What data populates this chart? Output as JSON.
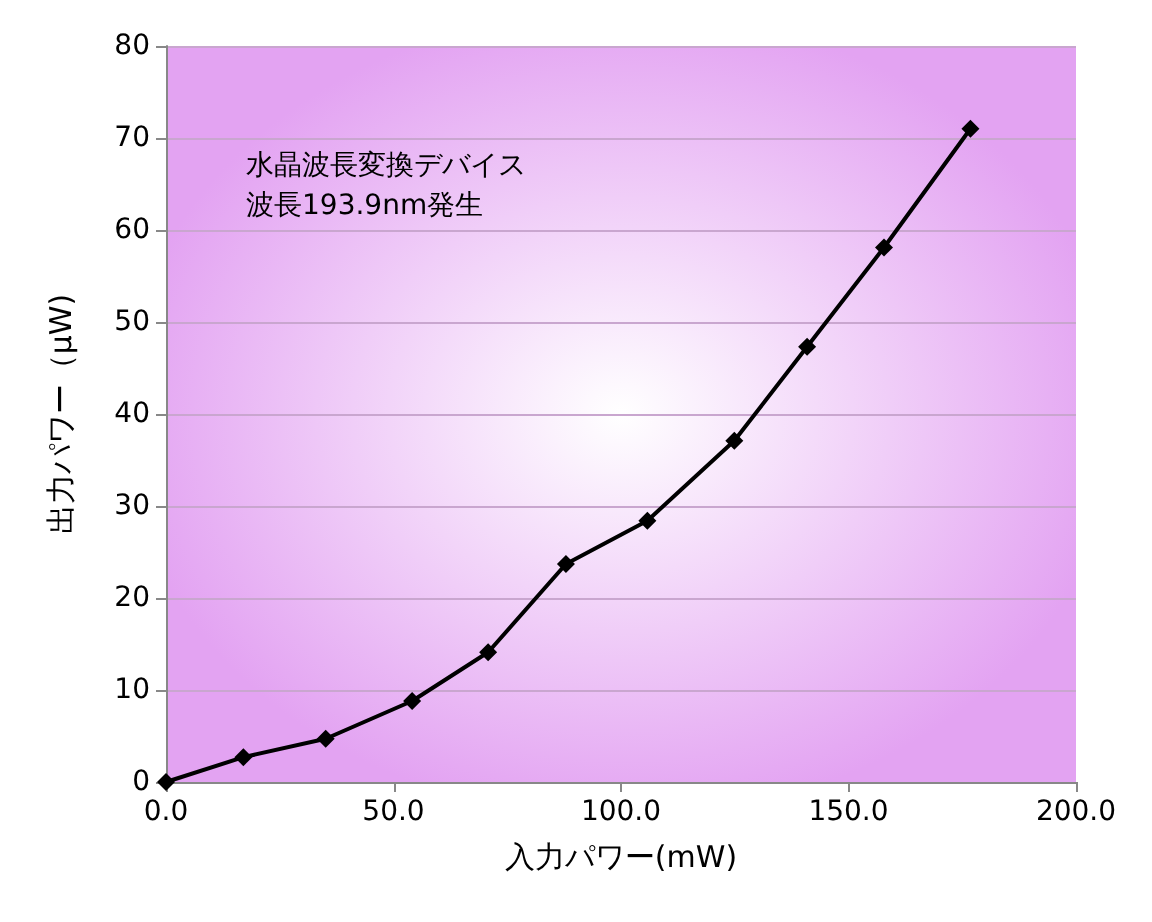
{
  "chart_data": {
    "type": "line",
    "xlabel": "入力パワー(mW)",
    "ylabel": "出力パワー（μW)",
    "annotations": [
      "水晶波長変換デバイス",
      "波長193.9nm発生"
    ],
    "x": [
      0,
      17.0,
      35.1,
      54.1,
      70.8,
      87.9,
      105.8,
      124.9,
      140.9,
      157.8,
      176.8
    ],
    "series": [
      {
        "color": "#000000",
        "values": [
          0,
          2.7,
          4.7,
          8.8,
          14.1,
          23.7,
          28.4,
          37.1,
          47.3,
          58.1,
          71.0
        ]
      }
    ],
    "xlim": [
      0,
      200
    ],
    "xticks": [
      {
        "value": 0,
        "label": "0.0"
      },
      {
        "value": 50,
        "label": "50.0"
      },
      {
        "value": 100,
        "label": "100.0"
      },
      {
        "value": 150,
        "label": "150.0"
      },
      {
        "value": 200,
        "label": "200.0"
      }
    ],
    "ylim": [
      0,
      80
    ],
    "yticks": [
      0,
      10,
      20,
      30,
      40,
      50,
      60,
      70,
      80
    ],
    "grid": "y",
    "marker": "diamond",
    "line_style": "solid"
  }
}
